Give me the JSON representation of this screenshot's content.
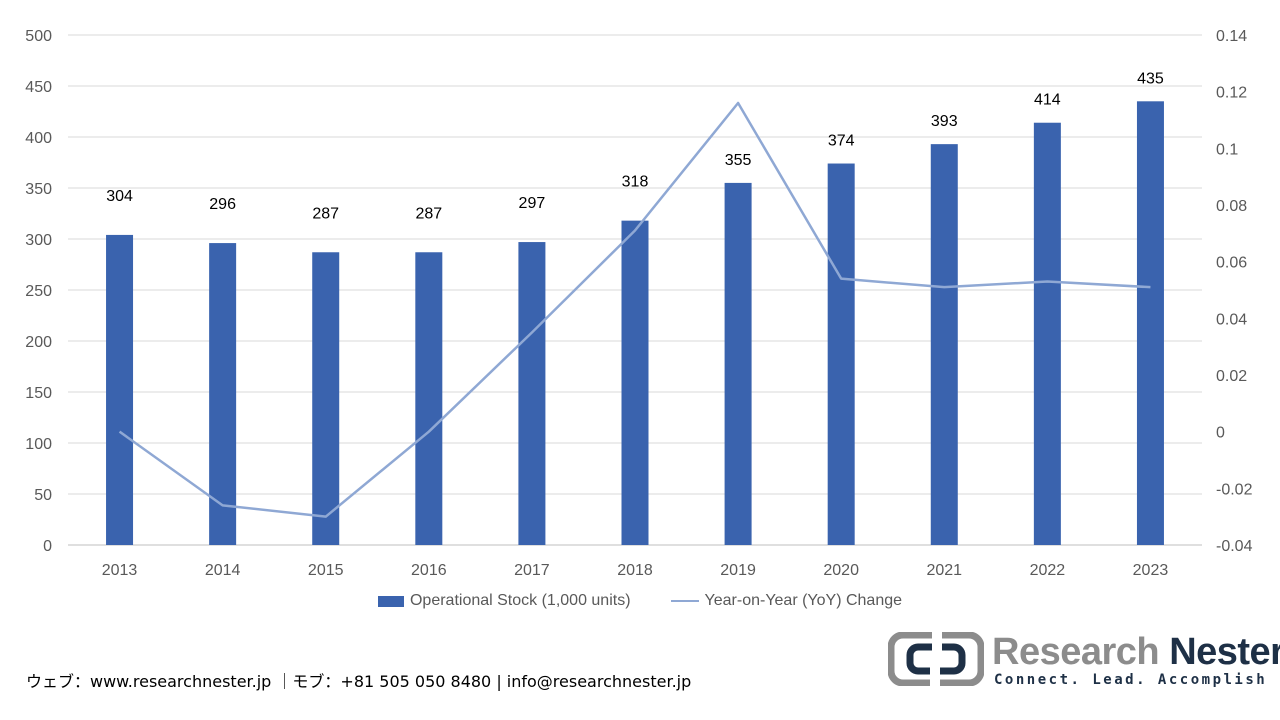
{
  "chart_data": {
    "type": "bar",
    "categories": [
      "2013",
      "2014",
      "2015",
      "2016",
      "2017",
      "2018",
      "2019",
      "2020",
      "2021",
      "2022",
      "2023"
    ],
    "series": [
      {
        "name": "Operational Stock (1,000 units)",
        "type": "bar",
        "axis": "left",
        "values": [
          304,
          296,
          287,
          287,
          297,
          318,
          355,
          374,
          393,
          414,
          435
        ],
        "color": "#3a63ae"
      },
      {
        "name": "Year-on-Year (YoY) Change",
        "type": "line",
        "axis": "right",
        "values": [
          0.0,
          -0.026,
          -0.03,
          0.0,
          0.035,
          0.071,
          0.116,
          0.054,
          0.051,
          0.053,
          0.051
        ],
        "color": "#8fa8d4"
      }
    ],
    "data_labels": [
      "304",
      "296",
      "287",
      "287",
      "297",
      "318",
      "355",
      "374",
      "393",
      "414",
      "435"
    ],
    "left_axis": {
      "min": 0,
      "max": 500,
      "ticks": [
        "0",
        "50",
        "100",
        "150",
        "200",
        "250",
        "300",
        "350",
        "400",
        "450",
        "500"
      ]
    },
    "right_axis": {
      "min": -0.04,
      "max": 0.14,
      "ticks": [
        "-0.04",
        "-0.02",
        "0",
        "0.02",
        "0.04",
        "0.06",
        "0.08",
        "0.1",
        "0.12",
        "0.14"
      ]
    },
    "legend_position": "bottom",
    "gridlines": true
  },
  "footer": {
    "contact": "ウェブ：www.researchnester.jp ｜モブ：+81 505 050 8480 | info@researchnester.jp"
  },
  "logo": {
    "word1": "Research",
    "word2": "Nester",
    "tagline": "Connect. Lead. Accomplish"
  }
}
